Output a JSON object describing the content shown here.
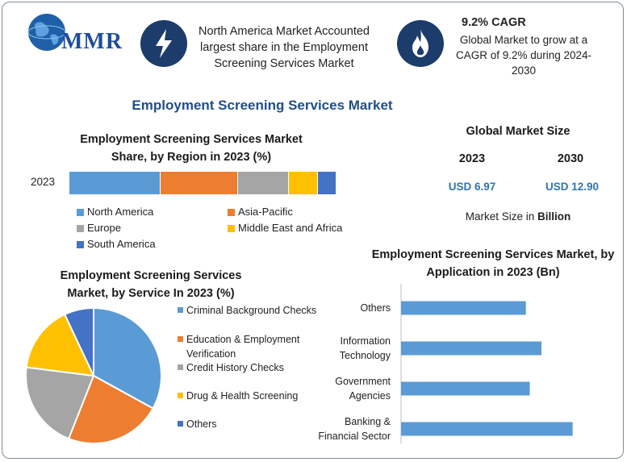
{
  "header": {
    "logo_text": "MMR",
    "highlight_1": "North America Market Accounted largest share in the Employment Screening Services Market",
    "highlight_2_title": "9.2% CAGR",
    "highlight_2_text": "Global Market to grow at a CAGR of 9.2% during 2024-2030"
  },
  "main_title": "Employment Screening Services Market",
  "colors": {
    "title_blue": "#1f4e8c",
    "icon_navy": "#1c3d6b",
    "value_blue": "#2e74b5",
    "north_america": "#5b9bd5",
    "asia_pacific": "#ed7d31",
    "europe": "#a5a5a5",
    "mea": "#ffc000",
    "south_america": "#4472c4"
  },
  "market_size": {
    "title": "Global Market Size",
    "years": [
      "2023",
      "2030"
    ],
    "values": [
      "USD 6.97",
      "USD 12.90"
    ],
    "unit_prefix": "Market Size in ",
    "unit_bold": "Billion"
  },
  "chart_data": [
    {
      "type": "bar",
      "orientation": "horizontal-stacked",
      "title": "Employment Screening Services Market Share, by Region in 2023 (%)",
      "categories": [
        "2023"
      ],
      "series": [
        {
          "name": "North America",
          "values": [
            34
          ]
        },
        {
          "name": "Asia-Pacific",
          "values": [
            29
          ]
        },
        {
          "name": "Europe",
          "values": [
            19
          ]
        },
        {
          "name": "Middle East and Africa",
          "values": [
            11
          ]
        },
        {
          "name": "South America",
          "values": [
            7
          ]
        }
      ],
      "legend": "bottom"
    },
    {
      "type": "pie",
      "title": "Employment Screening Services Market, by Service In 2023 (%)",
      "labels": [
        "Criminal Background Checks",
        "Education & Employment Verification",
        "Credit History Checks",
        "Drug & Health Screening",
        "Others"
      ],
      "values": [
        33,
        23,
        21,
        16,
        7
      ],
      "legend": "right"
    },
    {
      "type": "bar",
      "orientation": "horizontal",
      "title": "Employment Screening Services Market, by Application in 2023 (Bn)",
      "categories": [
        "Others",
        "Information Technology",
        "Government Agencies",
        "Banking & Financial Sector"
      ],
      "values": [
        1.6,
        1.8,
        1.65,
        2.2
      ],
      "xlim": [
        0,
        2.4
      ],
      "grid": false
    }
  ]
}
